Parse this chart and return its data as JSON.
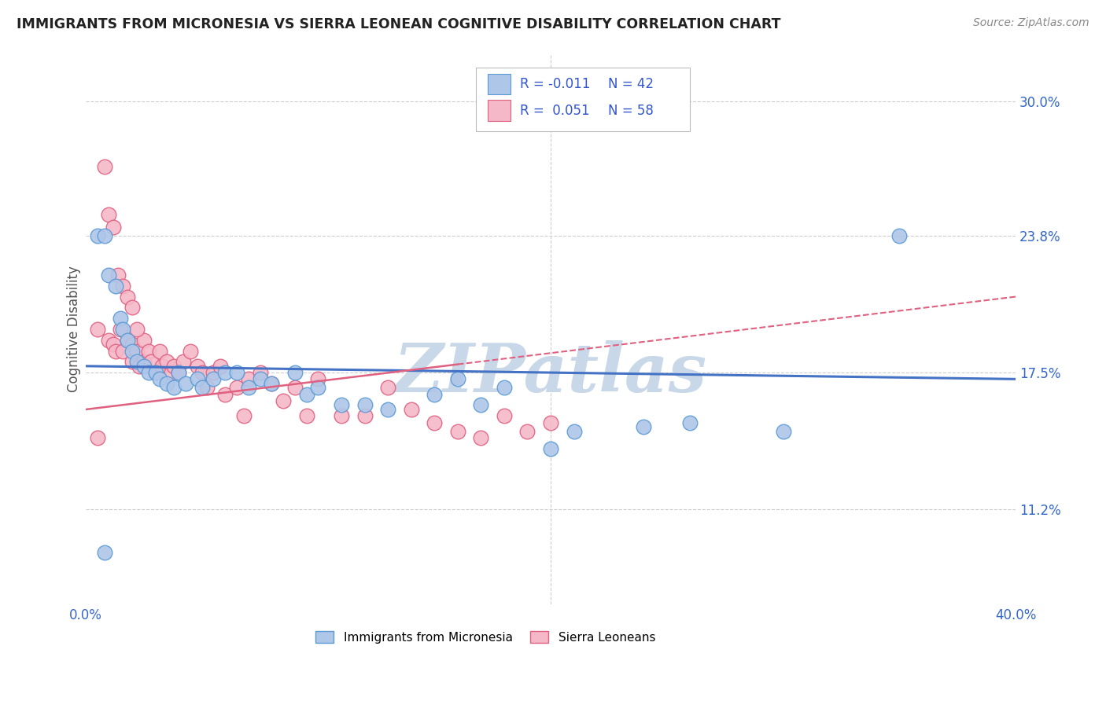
{
  "title": "IMMIGRANTS FROM MICRONESIA VS SIERRA LEONEAN COGNITIVE DISABILITY CORRELATION CHART",
  "source": "Source: ZipAtlas.com",
  "ylabel": "Cognitive Disability",
  "x_min": 0.0,
  "x_max": 0.4,
  "y_min": 0.068,
  "y_max": 0.322,
  "y_ticks": [
    0.112,
    0.175,
    0.238,
    0.3
  ],
  "y_tick_labels": [
    "11.2%",
    "17.5%",
    "23.8%",
    "30.0%"
  ],
  "series1_label": "Immigrants from Micronesia",
  "series1_color": "#aec6e8",
  "series1_edge_color": "#5b9bd5",
  "series1_R": "-0.011",
  "series1_N": "42",
  "series1_line_color": "#4472c4",
  "series2_label": "Sierra Leoneans",
  "series2_color": "#f4b8c8",
  "series2_edge_color": "#e06080",
  "series2_R": "0.051",
  "series2_N": "58",
  "series2_line_color": "#e06080",
  "watermark": "ZIPatlas",
  "watermark_color": "#c8d8e8",
  "legend_text_color": "#3355cc",
  "grid_color": "#cccccc",
  "scatter1_x": [
    0.005,
    0.008,
    0.01,
    0.013,
    0.015,
    0.016,
    0.018,
    0.02,
    0.022,
    0.025,
    0.027,
    0.03,
    0.032,
    0.035,
    0.038,
    0.04,
    0.043,
    0.048,
    0.05,
    0.055,
    0.06,
    0.065,
    0.07,
    0.075,
    0.08,
    0.09,
    0.095,
    0.1,
    0.11,
    0.12,
    0.13,
    0.15,
    0.16,
    0.17,
    0.18,
    0.2,
    0.21,
    0.24,
    0.26,
    0.3,
    0.35,
    0.008
  ],
  "scatter1_y": [
    0.238,
    0.238,
    0.22,
    0.215,
    0.2,
    0.195,
    0.19,
    0.185,
    0.18,
    0.178,
    0.175,
    0.175,
    0.172,
    0.17,
    0.168,
    0.175,
    0.17,
    0.172,
    0.168,
    0.172,
    0.175,
    0.175,
    0.168,
    0.172,
    0.17,
    0.175,
    0.165,
    0.168,
    0.16,
    0.16,
    0.158,
    0.165,
    0.172,
    0.16,
    0.168,
    0.14,
    0.148,
    0.15,
    0.152,
    0.148,
    0.238,
    0.092
  ],
  "scatter2_x": [
    0.005,
    0.008,
    0.01,
    0.012,
    0.013,
    0.015,
    0.016,
    0.018,
    0.02,
    0.02,
    0.022,
    0.023,
    0.025,
    0.025,
    0.027,
    0.028,
    0.03,
    0.032,
    0.033,
    0.035,
    0.037,
    0.038,
    0.04,
    0.042,
    0.045,
    0.048,
    0.05,
    0.052,
    0.055,
    0.058,
    0.06,
    0.065,
    0.068,
    0.07,
    0.075,
    0.08,
    0.085,
    0.09,
    0.095,
    0.1,
    0.11,
    0.12,
    0.13,
    0.14,
    0.15,
    0.16,
    0.17,
    0.18,
    0.19,
    0.2,
    0.01,
    0.012,
    0.014,
    0.016,
    0.018,
    0.02,
    0.022,
    0.005
  ],
  "scatter2_y": [
    0.195,
    0.27,
    0.19,
    0.188,
    0.185,
    0.195,
    0.185,
    0.19,
    0.188,
    0.18,
    0.185,
    0.178,
    0.19,
    0.18,
    0.185,
    0.18,
    0.175,
    0.185,
    0.178,
    0.18,
    0.175,
    0.178,
    0.175,
    0.18,
    0.185,
    0.178,
    0.175,
    0.168,
    0.175,
    0.178,
    0.165,
    0.168,
    0.155,
    0.172,
    0.175,
    0.17,
    0.162,
    0.168,
    0.155,
    0.172,
    0.155,
    0.155,
    0.168,
    0.158,
    0.152,
    0.148,
    0.145,
    0.155,
    0.148,
    0.152,
    0.248,
    0.242,
    0.22,
    0.215,
    0.21,
    0.205,
    0.195,
    0.145
  ],
  "trend1_x0": 0.0,
  "trend1_x1": 0.4,
  "trend1_y0": 0.178,
  "trend1_y1": 0.172,
  "trend2_x0": 0.0,
  "trend2_x1": 0.4,
  "trend2_y0": 0.158,
  "trend2_y1": 0.21
}
